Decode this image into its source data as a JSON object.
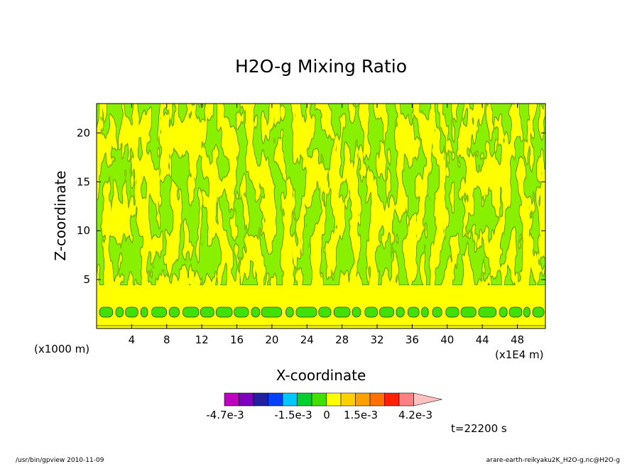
{
  "chart_data": {
    "type": "heatmap",
    "title": "H2O-g Mixing Ratio",
    "xlabel": "X-coordinate",
    "ylabel": "Z-coordinate",
    "x_unit_label": "(x1E4 m)",
    "y_unit_label": "(x1000 m)",
    "x_ticks": [
      "4",
      "8",
      "12",
      "16",
      "20",
      "24",
      "28",
      "32",
      "36",
      "40",
      "44",
      "48"
    ],
    "y_ticks": [
      "5",
      "10",
      "15",
      "20"
    ],
    "xlim": [
      0,
      51.2
    ],
    "ylim": [
      0,
      23
    ],
    "colorbar": {
      "colors": [
        "#c000c0",
        "#8000c0",
        "#2020a0",
        "#0040ff",
        "#00c8ff",
        "#00d030",
        "#40e000",
        "#ffff00",
        "#ffd000",
        "#ffa000",
        "#ff7000",
        "#ff2000",
        "#ff8080",
        "#ffc0c0"
      ],
      "tick_labels": [
        "-4.7e-3",
        "-1.5e-3",
        "0",
        "1.5e-3",
        "4.2e-3"
      ]
    },
    "field_levels_shown": {
      "background": "yellow",
      "anomaly": "green"
    },
    "time_label": "t=22200 s",
    "grid": false,
    "legend": "bottom"
  },
  "footer": {
    "left": "/usr/bin/gpview   2010-11-09",
    "right": "arare-earth-reikyaku2K_H2O-g.nc@H2O-g"
  }
}
